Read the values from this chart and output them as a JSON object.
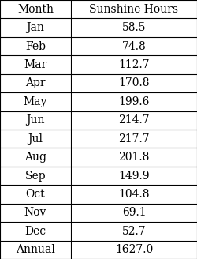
{
  "col1_header": "Month",
  "col2_header": "Sunshine Hours",
  "rows": [
    [
      "Jan",
      "58.5"
    ],
    [
      "Feb",
      "74.8"
    ],
    [
      "Mar",
      "112.7"
    ],
    [
      "Apr",
      "170.8"
    ],
    [
      "May",
      "199.6"
    ],
    [
      "Jun",
      "214.7"
    ],
    [
      "Jul",
      "217.7"
    ],
    [
      "Aug",
      "201.8"
    ],
    [
      "Sep",
      "149.9"
    ],
    [
      "Oct",
      "104.8"
    ],
    [
      "Nov",
      "69.1"
    ],
    [
      "Dec",
      "52.7"
    ],
    [
      "Annual",
      "1627.0"
    ]
  ],
  "bg_color": "#ffffff",
  "border_color": "#000000",
  "text_color": "#000000",
  "font_family": "serif",
  "header_fontsize": 10,
  "cell_fontsize": 10,
  "fig_width": 2.5,
  "fig_height": 3.28,
  "dpi": 100
}
